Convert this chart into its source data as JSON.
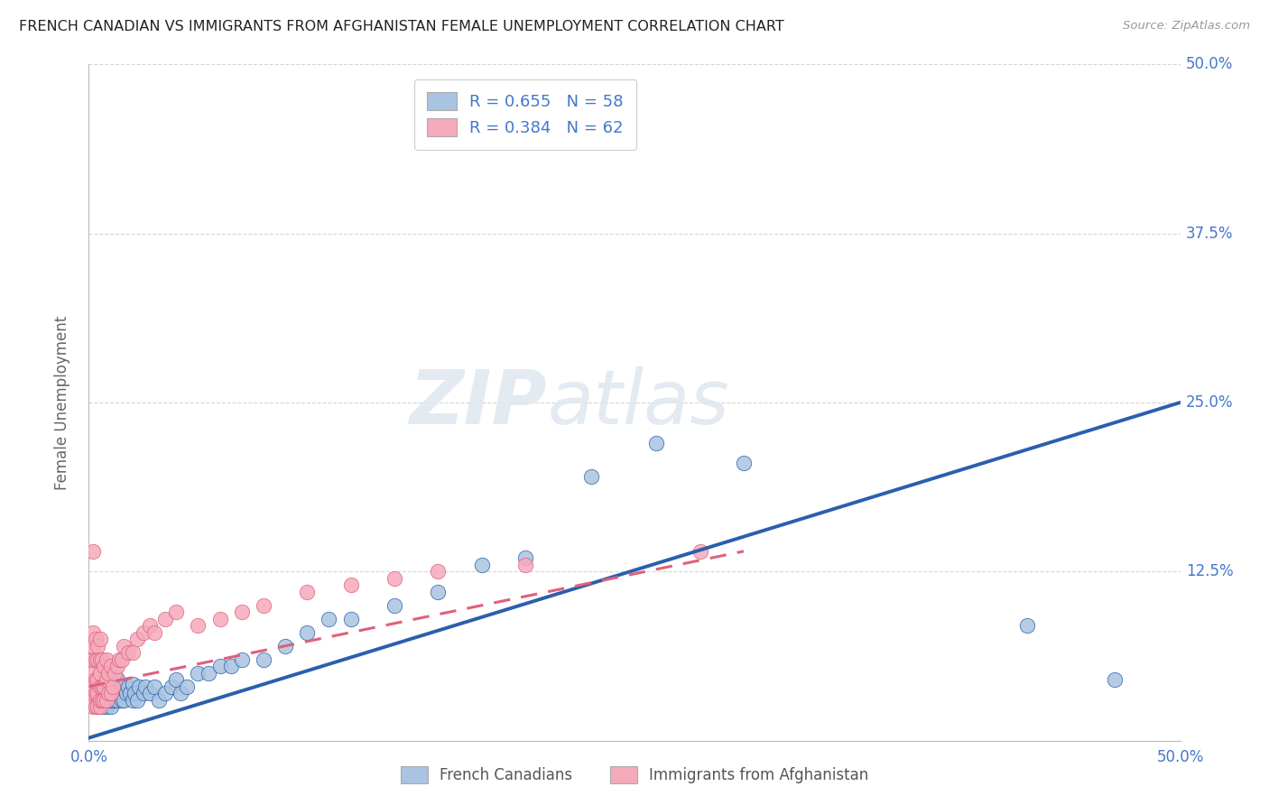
{
  "title": "FRENCH CANADIAN VS IMMIGRANTS FROM AFGHANISTAN FEMALE UNEMPLOYMENT CORRELATION CHART",
  "source": "Source: ZipAtlas.com",
  "ylabel": "Female Unemployment",
  "xlim": [
    0.0,
    0.5
  ],
  "ylim": [
    0.0,
    0.5
  ],
  "blue_R": 0.655,
  "blue_N": 58,
  "pink_R": 0.384,
  "pink_N": 62,
  "blue_color": "#a8c4e0",
  "blue_line_color": "#2b5fad",
  "pink_color": "#f5aabc",
  "pink_line_color": "#e0607a",
  "watermark_zip": "ZIP",
  "watermark_atlas": "atlas",
  "background_color": "#ffffff",
  "grid_color": "#cccccc",
  "axis_label_color": "#4477cc",
  "blue_scatter_x": [
    0.005,
    0.005,
    0.005,
    0.007,
    0.007,
    0.008,
    0.008,
    0.009,
    0.009,
    0.01,
    0.01,
    0.01,
    0.011,
    0.011,
    0.012,
    0.013,
    0.013,
    0.014,
    0.015,
    0.015,
    0.016,
    0.017,
    0.018,
    0.019,
    0.02,
    0.02,
    0.021,
    0.022,
    0.023,
    0.025,
    0.026,
    0.028,
    0.03,
    0.032,
    0.035,
    0.038,
    0.04,
    0.042,
    0.045,
    0.05,
    0.055,
    0.06,
    0.065,
    0.07,
    0.08,
    0.09,
    0.1,
    0.11,
    0.12,
    0.14,
    0.16,
    0.18,
    0.2,
    0.23,
    0.26,
    0.3,
    0.43,
    0.47
  ],
  "blue_scatter_y": [
    0.025,
    0.03,
    0.04,
    0.025,
    0.035,
    0.025,
    0.04,
    0.03,
    0.038,
    0.025,
    0.03,
    0.05,
    0.03,
    0.04,
    0.03,
    0.03,
    0.045,
    0.035,
    0.03,
    0.04,
    0.03,
    0.035,
    0.04,
    0.035,
    0.03,
    0.042,
    0.035,
    0.03,
    0.04,
    0.035,
    0.04,
    0.035,
    0.04,
    0.03,
    0.035,
    0.04,
    0.045,
    0.035,
    0.04,
    0.05,
    0.05,
    0.055,
    0.055,
    0.06,
    0.06,
    0.07,
    0.08,
    0.09,
    0.09,
    0.1,
    0.11,
    0.13,
    0.135,
    0.195,
    0.22,
    0.205,
    0.085,
    0.045
  ],
  "pink_scatter_x": [
    0.002,
    0.002,
    0.002,
    0.002,
    0.002,
    0.002,
    0.002,
    0.002,
    0.002,
    0.003,
    0.003,
    0.003,
    0.003,
    0.003,
    0.004,
    0.004,
    0.004,
    0.004,
    0.004,
    0.005,
    0.005,
    0.005,
    0.005,
    0.005,
    0.005,
    0.006,
    0.006,
    0.006,
    0.007,
    0.007,
    0.007,
    0.008,
    0.008,
    0.008,
    0.009,
    0.009,
    0.01,
    0.01,
    0.011,
    0.012,
    0.013,
    0.014,
    0.015,
    0.016,
    0.018,
    0.02,
    0.022,
    0.025,
    0.028,
    0.03,
    0.035,
    0.04,
    0.05,
    0.06,
    0.07,
    0.08,
    0.1,
    0.12,
    0.14,
    0.16,
    0.2,
    0.28
  ],
  "pink_scatter_y": [
    0.025,
    0.03,
    0.035,
    0.04,
    0.05,
    0.06,
    0.07,
    0.08,
    0.14,
    0.025,
    0.035,
    0.045,
    0.06,
    0.075,
    0.025,
    0.035,
    0.045,
    0.06,
    0.07,
    0.025,
    0.03,
    0.04,
    0.05,
    0.06,
    0.075,
    0.03,
    0.04,
    0.06,
    0.03,
    0.04,
    0.055,
    0.03,
    0.045,
    0.06,
    0.035,
    0.05,
    0.035,
    0.055,
    0.04,
    0.05,
    0.055,
    0.06,
    0.06,
    0.07,
    0.065,
    0.065,
    0.075,
    0.08,
    0.085,
    0.08,
    0.09,
    0.095,
    0.085,
    0.09,
    0.095,
    0.1,
    0.11,
    0.115,
    0.12,
    0.125,
    0.13,
    0.14
  ],
  "blue_line_x": [
    0.0,
    0.5
  ],
  "blue_line_y": [
    0.002,
    0.25
  ],
  "pink_line_x": [
    0.0,
    0.3
  ],
  "pink_line_y": [
    0.04,
    0.14
  ]
}
